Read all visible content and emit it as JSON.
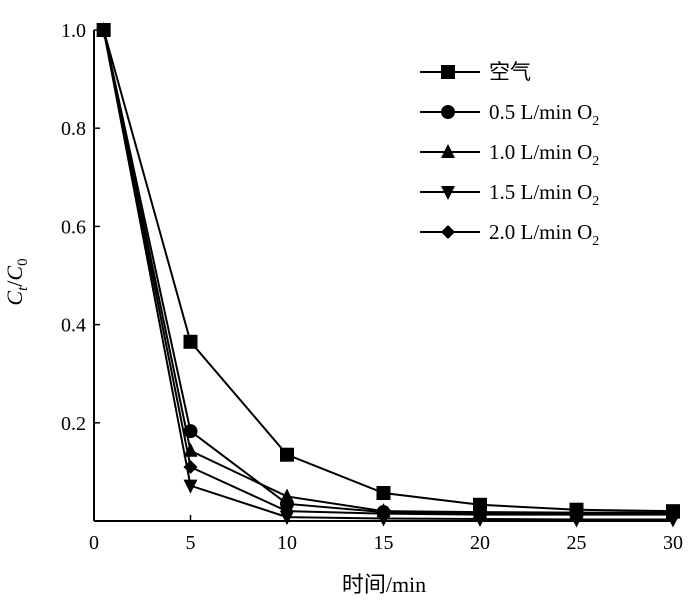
{
  "chart_data": {
    "type": "line",
    "title": "",
    "xlabel": "时间/min",
    "ylabel": {
      "main": "C",
      "sub_t": "t",
      "slash": "/",
      "denom": "C",
      "sub_0": "0"
    },
    "xlim": [
      0,
      30
    ],
    "ylim": [
      0,
      1.0
    ],
    "x_ticks": [
      0,
      5,
      10,
      15,
      20,
      25,
      30
    ],
    "x_tick_labels": [
      "0",
      "5",
      "10",
      "15",
      "20",
      "25",
      "30"
    ],
    "y_ticks": [
      0.2,
      0.4,
      0.6,
      0.8,
      1.0
    ],
    "y_tick_labels": [
      "0.2",
      "0.4",
      "0.6",
      "0.8",
      "1.0"
    ],
    "grid": false,
    "legend_position": "top-right",
    "x": [
      0.5,
      5,
      10,
      15,
      20,
      25,
      30
    ],
    "series": [
      {
        "name": "空气",
        "name_sub": "",
        "marker": "square",
        "values": [
          1.0,
          0.365,
          0.135,
          0.057,
          0.033,
          0.023,
          0.02
        ]
      },
      {
        "name": "0.5 L/min O",
        "name_sub": "2",
        "marker": "circle",
        "values": [
          1.0,
          0.183,
          0.035,
          0.018,
          0.015,
          0.015,
          0.015
        ]
      },
      {
        "name": "1.0 L/min O",
        "name_sub": "2",
        "marker": "triangle-up",
        "values": [
          1.0,
          0.143,
          0.05,
          0.02,
          0.018,
          0.017,
          0.017
        ]
      },
      {
        "name": "1.5 L/min O",
        "name_sub": "2",
        "marker": "triangle-down",
        "values": [
          1.0,
          0.072,
          0.008,
          0.005,
          0.004,
          0.003,
          0.003
        ]
      },
      {
        "name": "2.0 L/min O",
        "name_sub": "2",
        "marker": "diamond",
        "values": [
          1.0,
          0.11,
          0.02,
          0.015,
          0.013,
          0.013,
          0.013
        ]
      }
    ]
  }
}
